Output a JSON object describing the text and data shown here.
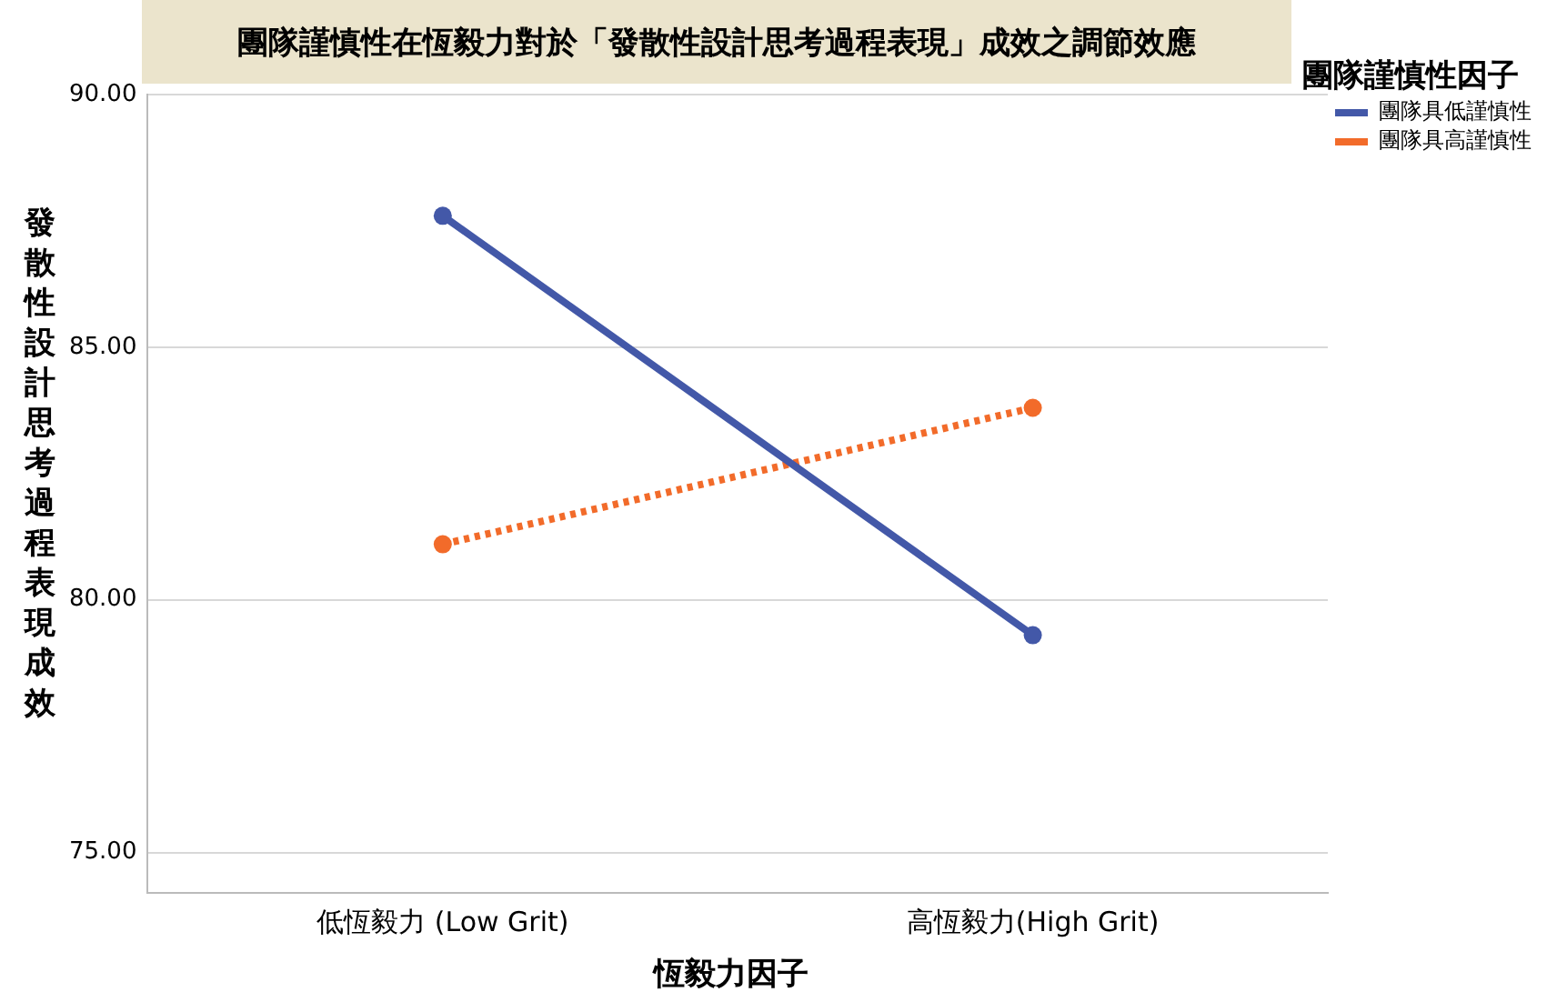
{
  "chart_data": {
    "type": "line",
    "title": "團隊謹慎性在恆毅力對於「發散性設計思考過程表現」成效之調節效應",
    "xlabel": "恆毅力因子",
    "ylabel": "發散性設計思考過程表現成效",
    "legend_title": "團隊謹慎性因子",
    "categories": [
      "低恆毅力 (Low Grit)",
      "高恆毅力(High Grit)"
    ],
    "series": [
      {
        "name": "團隊具低謹慎性",
        "color": "#4358a8",
        "values": [
          87.6,
          79.3
        ],
        "line_style": "solid"
      },
      {
        "name": "團隊具高謹慎性",
        "color": "#f26b2a",
        "values": [
          81.1,
          83.8
        ],
        "line_style": "dotted"
      }
    ],
    "ylim": [
      74.2,
      90
    ],
    "yticks": [
      {
        "value": 75,
        "label": "75.00"
      },
      {
        "value": 80,
        "label": "80.00"
      },
      {
        "value": 85,
        "label": "85.00"
      },
      {
        "value": 90,
        "label": "90.00"
      }
    ],
    "grid": "y",
    "legend": "top right",
    "marker": "circle"
  }
}
